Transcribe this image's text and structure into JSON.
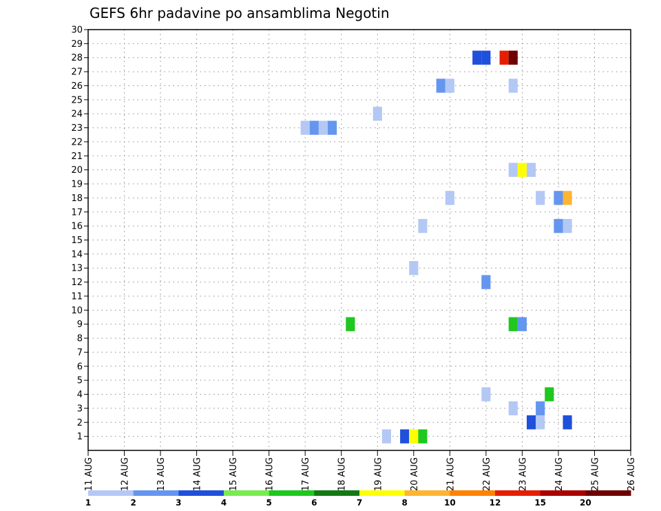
{
  "chart_data": {
    "type": "heatmap",
    "title": "GEFS 6hr padavine po ansamblima Negotin",
    "xlabel": "",
    "ylabel": "",
    "x_tick_labels": [
      "11 AUG",
      "12 AUG",
      "13 AUG",
      "14 AUG",
      "15 AUG",
      "16 AUG",
      "17 AUG",
      "18 AUG",
      "19 AUG",
      "20 AUG",
      "21 AUG",
      "22 AUG",
      "23 AUG",
      "24 AUG",
      "25 AUG",
      "26 AUG"
    ],
    "x_range": [
      0,
      15
    ],
    "y_range": [
      0,
      30
    ],
    "y_ticks": [
      1,
      2,
      3,
      4,
      5,
      6,
      7,
      8,
      9,
      10,
      11,
      12,
      13,
      14,
      15,
      16,
      17,
      18,
      19,
      20,
      21,
      22,
      23,
      24,
      25,
      26,
      27,
      28,
      29,
      30
    ],
    "grid": true,
    "bin_width_days": 0.25,
    "cells": [
      {
        "x": 6.0,
        "y": 23,
        "v": 1
      },
      {
        "x": 6.25,
        "y": 23,
        "v": 2
      },
      {
        "x": 6.5,
        "y": 23,
        "v": 1
      },
      {
        "x": 6.75,
        "y": 23,
        "v": 2
      },
      {
        "x": 7.25,
        "y": 9,
        "v": 5
      },
      {
        "x": 8.0,
        "y": 24,
        "v": 1
      },
      {
        "x": 8.25,
        "y": 1,
        "v": 1
      },
      {
        "x": 8.75,
        "y": 1,
        "v": 3
      },
      {
        "x": 9.0,
        "y": 1,
        "v": 7
      },
      {
        "x": 9.25,
        "y": 1,
        "v": 5
      },
      {
        "x": 9.0,
        "y": 13,
        "v": 1
      },
      {
        "x": 9.25,
        "y": 16,
        "v": 1
      },
      {
        "x": 9.75,
        "y": 26,
        "v": 2
      },
      {
        "x": 10.0,
        "y": 26,
        "v": 1
      },
      {
        "x": 10.0,
        "y": 18,
        "v": 1
      },
      {
        "x": 10.75,
        "y": 28,
        "v": 3
      },
      {
        "x": 11.0,
        "y": 28,
        "v": 3
      },
      {
        "x": 11.0,
        "y": 12,
        "v": 2
      },
      {
        "x": 11.0,
        "y": 4,
        "v": 1
      },
      {
        "x": 11.5,
        "y": 28,
        "v": 12
      },
      {
        "x": 11.75,
        "y": 28,
        "v": 20
      },
      {
        "x": 11.75,
        "y": 26,
        "v": 1
      },
      {
        "x": 11.75,
        "y": 20,
        "v": 1
      },
      {
        "x": 12.0,
        "y": 20,
        "v": 7
      },
      {
        "x": 12.25,
        "y": 20,
        "v": 1
      },
      {
        "x": 11.75,
        "y": 9,
        "v": 5
      },
      {
        "x": 12.0,
        "y": 9,
        "v": 2
      },
      {
        "x": 11.75,
        "y": 3,
        "v": 1
      },
      {
        "x": 12.25,
        "y": 2,
        "v": 3
      },
      {
        "x": 12.5,
        "y": 2,
        "v": 1
      },
      {
        "x": 12.5,
        "y": 3,
        "v": 2
      },
      {
        "x": 12.5,
        "y": 18,
        "v": 1
      },
      {
        "x": 12.75,
        "y": 4,
        "v": 5
      },
      {
        "x": 13.0,
        "y": 18,
        "v": 2
      },
      {
        "x": 13.25,
        "y": 18,
        "v": 8
      },
      {
        "x": 13.0,
        "y": 16,
        "v": 2
      },
      {
        "x": 13.25,
        "y": 16,
        "v": 1
      },
      {
        "x": 13.25,
        "y": 2,
        "v": 3
      }
    ],
    "colorbar": {
      "labels": [
        "1",
        "2",
        "3",
        "4",
        "5",
        "6",
        "7",
        "8",
        "10",
        "12",
        "15",
        "20"
      ],
      "levels": [
        1,
        2,
        3,
        4,
        5,
        6,
        7,
        8,
        10,
        12,
        15,
        20
      ],
      "colors": [
        "#b4c8f5",
        "#6496f0",
        "#1e50dc",
        "#78ec50",
        "#1ec81e",
        "#147814",
        "#ffff00",
        "#ffb432",
        "#ff8200",
        "#e61e00",
        "#aa0000",
        "#6e0000"
      ]
    }
  }
}
